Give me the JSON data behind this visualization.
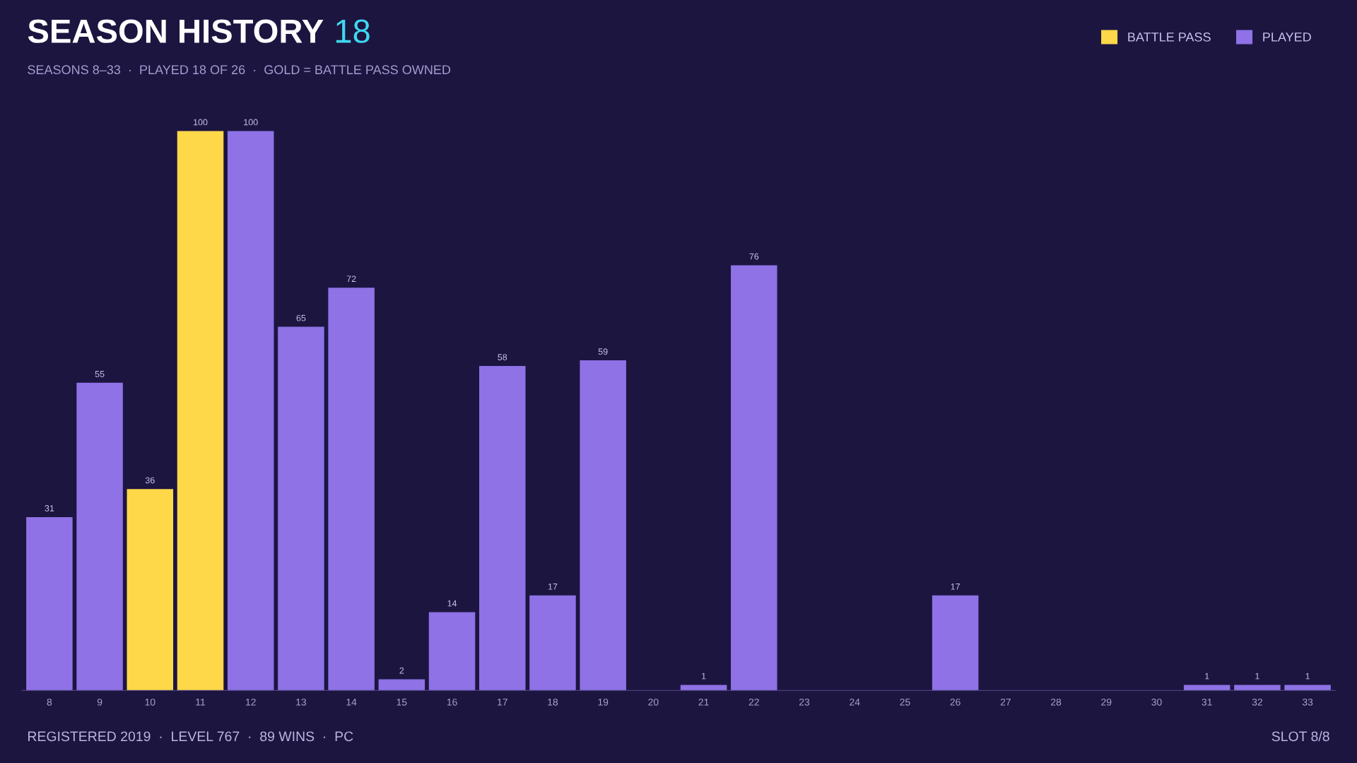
{
  "chart_data": {
    "type": "bar",
    "title": "SEASON HISTORY",
    "subtitle": "SEASONS 8–33  ·  PLAYED 18 OF 26  ·  GOLD = BATTLE PASS OWNED",
    "annotations": [
      "18",
      "REGISTERED 2019  ·  LEVEL 767  ·  89 WINS  ·  PC",
      "SLOT 8/8"
    ],
    "categories": [
      "8",
      "9",
      "10",
      "11",
      "12",
      "13",
      "14",
      "15",
      "16",
      "17",
      "18",
      "19",
      "20",
      "21",
      "22",
      "23",
      "24",
      "25",
      "26",
      "27",
      "28",
      "29",
      "30",
      "31",
      "32",
      "33"
    ],
    "series": [
      {
        "name": "BATTLE PASS",
        "color": "#ffd84a",
        "values": [
          null,
          null,
          36,
          100,
          null,
          null,
          null,
          null,
          null,
          null,
          null,
          null,
          null,
          null,
          null,
          null,
          null,
          null,
          null,
          null,
          null,
          null,
          null,
          null,
          null,
          null
        ]
      },
      {
        "name": "PLAYED",
        "color": "#8e72e6",
        "values": [
          31,
          55,
          null,
          null,
          100,
          65,
          72,
          2,
          14,
          58,
          17,
          59,
          null,
          1,
          76,
          null,
          null,
          null,
          17,
          null,
          null,
          null,
          null,
          1,
          1,
          1
        ]
      }
    ],
    "data_labels": true,
    "legend": "top right",
    "grid": false
  }
}
